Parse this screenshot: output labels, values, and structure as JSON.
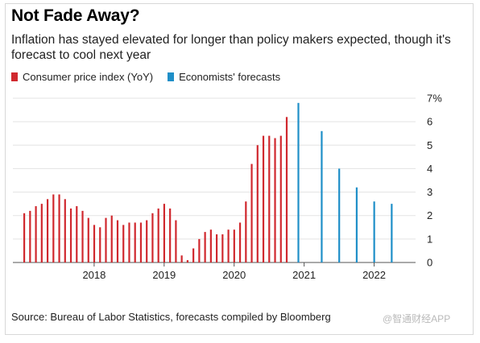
{
  "header": {
    "title": "Not Fade Away?",
    "subtitle": "Inflation has stayed elevated for longer than policy makers expected, though it's forecast to cool next year"
  },
  "legend": [
    {
      "label": "Consumer price index (YoY)",
      "color": "#d0282e"
    },
    {
      "label": "Economists' forecasts",
      "color": "#1f8fc8"
    }
  ],
  "footer": {
    "source": "Source: Bureau of Labor Statistics, forecasts compiled by Bloomberg",
    "watermark": "@智通财经APP"
  },
  "chart_data": {
    "type": "bar",
    "ylim": [
      0,
      7
    ],
    "yticks": [
      "0",
      "1",
      "2",
      "3",
      "4",
      "5",
      "6",
      "7%"
    ],
    "xticks": [
      {
        "label": "2018",
        "x": 2018
      },
      {
        "label": "2019",
        "x": 2019
      },
      {
        "label": "2020",
        "x": 2020
      },
      {
        "label": "2021",
        "x": 2021
      },
      {
        "label": "2022",
        "x": 2022
      }
    ],
    "xlim": [
      2017.0,
      2022.5
    ],
    "series": [
      {
        "name": "Consumer price index (YoY)",
        "color": "#d0282e",
        "x": [
          2017.0,
          2017.0833,
          2017.1667,
          2017.25,
          2017.3333,
          2017.4167,
          2017.5,
          2017.5833,
          2017.6667,
          2017.75,
          2017.8333,
          2017.9167,
          2018.0,
          2018.0833,
          2018.1667,
          2018.25,
          2018.3333,
          2018.4167,
          2018.5,
          2018.5833,
          2018.6667,
          2018.75,
          2018.8333,
          2018.9167,
          2019.0,
          2019.0833,
          2019.1667,
          2019.25,
          2019.3333,
          2019.4167,
          2019.5,
          2019.5833,
          2019.6667,
          2019.75,
          2019.8333,
          2019.9167,
          2020.0,
          2020.0833,
          2020.1667,
          2020.25,
          2020.3333,
          2020.4167,
          2020.5,
          2020.5833,
          2020.6667,
          2020.75,
          2020.8333
        ],
        "values": [
          2.1,
          2.2,
          2.4,
          2.5,
          2.7,
          2.9,
          2.9,
          2.7,
          2.3,
          2.4,
          2.2,
          1.9,
          1.6,
          1.5,
          1.9,
          2.0,
          1.8,
          1.6,
          1.7,
          1.7,
          1.7,
          1.8,
          2.1,
          2.3,
          2.5,
          2.3,
          1.8,
          0.3,
          0.1,
          0.6,
          1.0,
          1.3,
          1.4,
          1.2,
          1.2,
          1.4,
          1.4,
          1.7,
          2.6,
          4.2,
          5.0,
          5.4,
          5.4,
          5.3,
          5.4,
          6.2,
          null
        ]
      },
      {
        "name": "Economists' forecasts",
        "color": "#1f8fc8",
        "x": [
          2020.9167,
          2021.25,
          2021.5,
          2021.75,
          2022.0,
          2022.25
        ],
        "values": [
          6.8,
          5.6,
          4.0,
          3.2,
          2.6,
          2.5
        ]
      }
    ]
  }
}
